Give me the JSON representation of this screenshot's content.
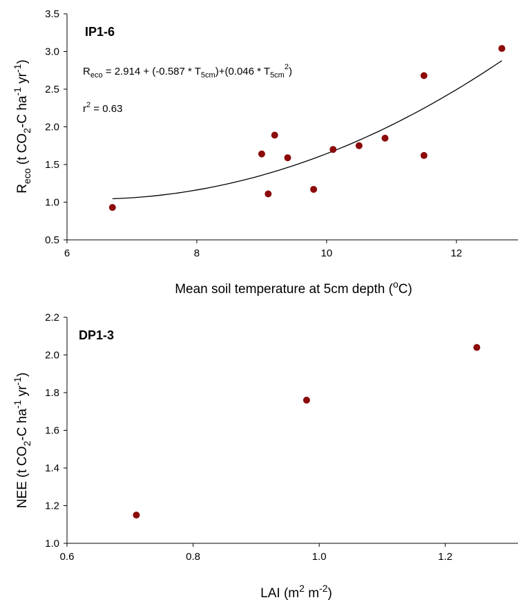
{
  "colors": {
    "point": "#8b0a0a",
    "axis": "#000000",
    "background": "#ffffff"
  },
  "chart_data": [
    {
      "type": "scatter",
      "panel_label": "IP1-6",
      "xlabel": "Mean soil temperature at 5cm depth (oC)",
      "ylabel": "Reco (t CO2-C ha-1 yr-1)",
      "xlim": [
        6,
        12.8
      ],
      "ylim": [
        0.5,
        3.5
      ],
      "xticks": [
        6,
        8,
        10,
        12
      ],
      "yticks": [
        0.5,
        1.0,
        1.5,
        2.0,
        2.5,
        3.0,
        3.5
      ],
      "x": [
        6.7,
        9.0,
        9.1,
        9.2,
        9.4,
        9.8,
        10.1,
        10.5,
        10.9,
        11.5,
        11.5,
        12.7
      ],
      "y": [
        0.93,
        1.64,
        1.11,
        1.89,
        1.59,
        1.17,
        1.7,
        1.75,
        1.85,
        2.68,
        1.62,
        3.04
      ],
      "fit": {
        "type": "quadratic",
        "coefficients": [
          2.914,
          -0.587,
          0.046
        ],
        "x_range": [
          6.7,
          12.7
        ],
        "equation": "Reco = 2.914 + (-0.587 * T5cm)+(0.046 * T5cm2)",
        "r2": "r2 = 0.63"
      },
      "grid": false,
      "legend": "none"
    },
    {
      "type": "scatter",
      "panel_label": "DP1-3",
      "xlabel": "LAI (m2 m-2)",
      "ylabel": "NEE (t CO2-C ha-1 yr-1)",
      "xlim": [
        0.6,
        1.3
      ],
      "ylim": [
        1.0,
        2.2
      ],
      "xticks": [
        0.6,
        0.8,
        1.0,
        1.2
      ],
      "yticks": [
        1.0,
        1.2,
        1.4,
        1.6,
        1.8,
        2.0,
        2.2
      ],
      "x": [
        0.71,
        0.98,
        1.25
      ],
      "y": [
        1.15,
        1.76,
        2.04
      ],
      "grid": false,
      "legend": "none"
    }
  ]
}
